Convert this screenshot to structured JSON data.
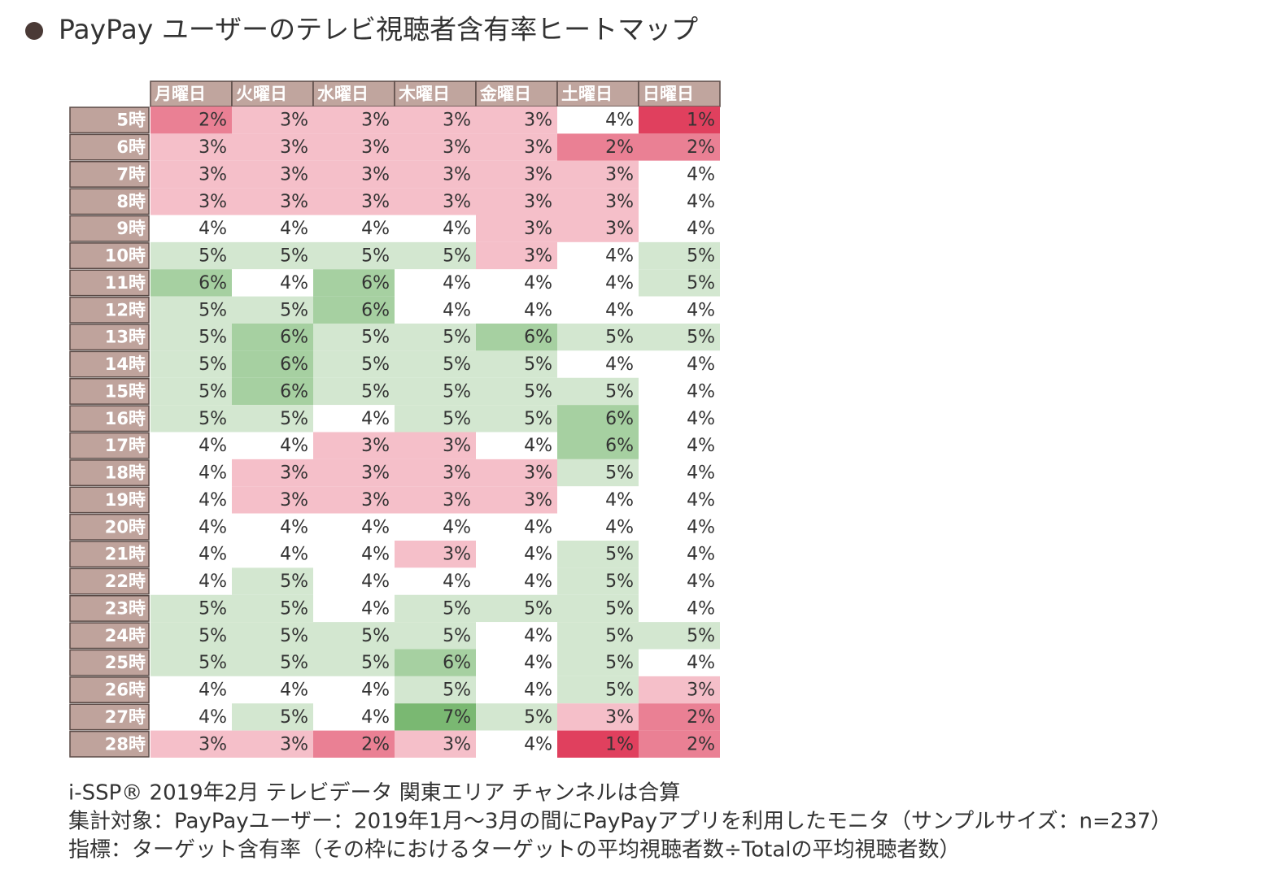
{
  "chart_data": {
    "type": "heatmap",
    "title": "PayPay ユーザーのテレビ視聴者含有率ヒートマップ",
    "x": [
      "月曜日",
      "火曜日",
      "水曜日",
      "木曜日",
      "金曜日",
      "土曜日",
      "日曜日"
    ],
    "y": [
      "5時",
      "6時",
      "7時",
      "8時",
      "9時",
      "10時",
      "11時",
      "12時",
      "13時",
      "14時",
      "15時",
      "16時",
      "17時",
      "18時",
      "19時",
      "20時",
      "21時",
      "22時",
      "23時",
      "24時",
      "25時",
      "26時",
      "27時",
      "28時"
    ],
    "values": [
      [
        2,
        3,
        3,
        3,
        3,
        4,
        1
      ],
      [
        3,
        3,
        3,
        3,
        3,
        2,
        2
      ],
      [
        3,
        3,
        3,
        3,
        3,
        3,
        4
      ],
      [
        3,
        3,
        3,
        3,
        3,
        3,
        4
      ],
      [
        4,
        4,
        4,
        4,
        3,
        3,
        4
      ],
      [
        5,
        5,
        5,
        5,
        3,
        4,
        5
      ],
      [
        6,
        4,
        6,
        4,
        4,
        4,
        5
      ],
      [
        5,
        5,
        6,
        4,
        4,
        4,
        4
      ],
      [
        5,
        6,
        5,
        5,
        6,
        5,
        5
      ],
      [
        5,
        6,
        5,
        5,
        5,
        4,
        4
      ],
      [
        5,
        6,
        5,
        5,
        5,
        5,
        4
      ],
      [
        5,
        5,
        4,
        5,
        5,
        6,
        4
      ],
      [
        4,
        4,
        3,
        3,
        4,
        6,
        4
      ],
      [
        4,
        3,
        3,
        3,
        3,
        5,
        4
      ],
      [
        4,
        3,
        3,
        3,
        3,
        4,
        4
      ],
      [
        4,
        4,
        4,
        4,
        4,
        4,
        4
      ],
      [
        4,
        4,
        4,
        3,
        4,
        5,
        4
      ],
      [
        4,
        5,
        4,
        4,
        4,
        5,
        4
      ],
      [
        5,
        5,
        4,
        5,
        5,
        5,
        4
      ],
      [
        5,
        5,
        5,
        5,
        4,
        5,
        5
      ],
      [
        5,
        5,
        5,
        6,
        4,
        5,
        4
      ],
      [
        4,
        4,
        4,
        5,
        4,
        5,
        3
      ],
      [
        4,
        5,
        4,
        7,
        5,
        3,
        2
      ],
      [
        3,
        3,
        2,
        3,
        4,
        1,
        2
      ]
    ],
    "value_labels": [
      [
        "2%",
        "3%",
        "3%",
        "3%",
        "3%",
        "4%",
        "1%"
      ],
      [
        "3%",
        "3%",
        "3%",
        "3%",
        "3%",
        "2%",
        "2%"
      ],
      [
        "3%",
        "3%",
        "3%",
        "3%",
        "3%",
        "3%",
        "4%"
      ],
      [
        "3%",
        "3%",
        "3%",
        "3%",
        "3%",
        "3%",
        "4%"
      ],
      [
        "4%",
        "4%",
        "4%",
        "4%",
        "3%",
        "3%",
        "4%"
      ],
      [
        "5%",
        "5%",
        "5%",
        "5%",
        "3%",
        "4%",
        "5%"
      ],
      [
        "6%",
        "4%",
        "6%",
        "4%",
        "4%",
        "4%",
        "5%"
      ],
      [
        "5%",
        "5%",
        "6%",
        "4%",
        "4%",
        "4%",
        "4%"
      ],
      [
        "5%",
        "6%",
        "5%",
        "5%",
        "6%",
        "5%",
        "5%"
      ],
      [
        "5%",
        "6%",
        "5%",
        "5%",
        "5%",
        "4%",
        "4%"
      ],
      [
        "5%",
        "6%",
        "5%",
        "5%",
        "5%",
        "5%",
        "4%"
      ],
      [
        "5%",
        "5%",
        "4%",
        "5%",
        "5%",
        "6%",
        "4%"
      ],
      [
        "4%",
        "4%",
        "3%",
        "3%",
        "4%",
        "6%",
        "4%"
      ],
      [
        "4%",
        "3%",
        "3%",
        "3%",
        "3%",
        "5%",
        "4%"
      ],
      [
        "4%",
        "3%",
        "3%",
        "3%",
        "3%",
        "4%",
        "4%"
      ],
      [
        "4%",
        "4%",
        "4%",
        "4%",
        "4%",
        "4%",
        "4%"
      ],
      [
        "4%",
        "4%",
        "4%",
        "3%",
        "4%",
        "5%",
        "4%"
      ],
      [
        "4%",
        "5%",
        "4%",
        "4%",
        "4%",
        "5%",
        "4%"
      ],
      [
        "5%",
        "5%",
        "4%",
        "5%",
        "5%",
        "5%",
        "4%"
      ],
      [
        "5%",
        "5%",
        "5%",
        "5%",
        "4%",
        "5%",
        "5%"
      ],
      [
        "5%",
        "5%",
        "5%",
        "6%",
        "4%",
        "5%",
        "4%"
      ],
      [
        "4%",
        "4%",
        "4%",
        "5%",
        "4%",
        "5%",
        "3%"
      ],
      [
        "4%",
        "5%",
        "4%",
        "7%",
        "5%",
        "3%",
        "2%"
      ],
      [
        "3%",
        "3%",
        "2%",
        "3%",
        "4%",
        "1%",
        "2%"
      ]
    ],
    "colors": {
      "low": "#e0405e",
      "mid": "#ffffff",
      "high": "#7ab872"
    },
    "notes": [
      "i-SSP® 2019年2月 テレビデータ 関東エリア チャンネルは合算",
      "集計対象：PayPayユーザー：2019年1月～3月の間にPayPayアプリを利用したモニタ（サンプルサイズ：n=237）",
      "指標：ターゲット含有率（その枠におけるターゲットの平均視聴者数÷Totalの平均視聴者数）"
    ]
  }
}
